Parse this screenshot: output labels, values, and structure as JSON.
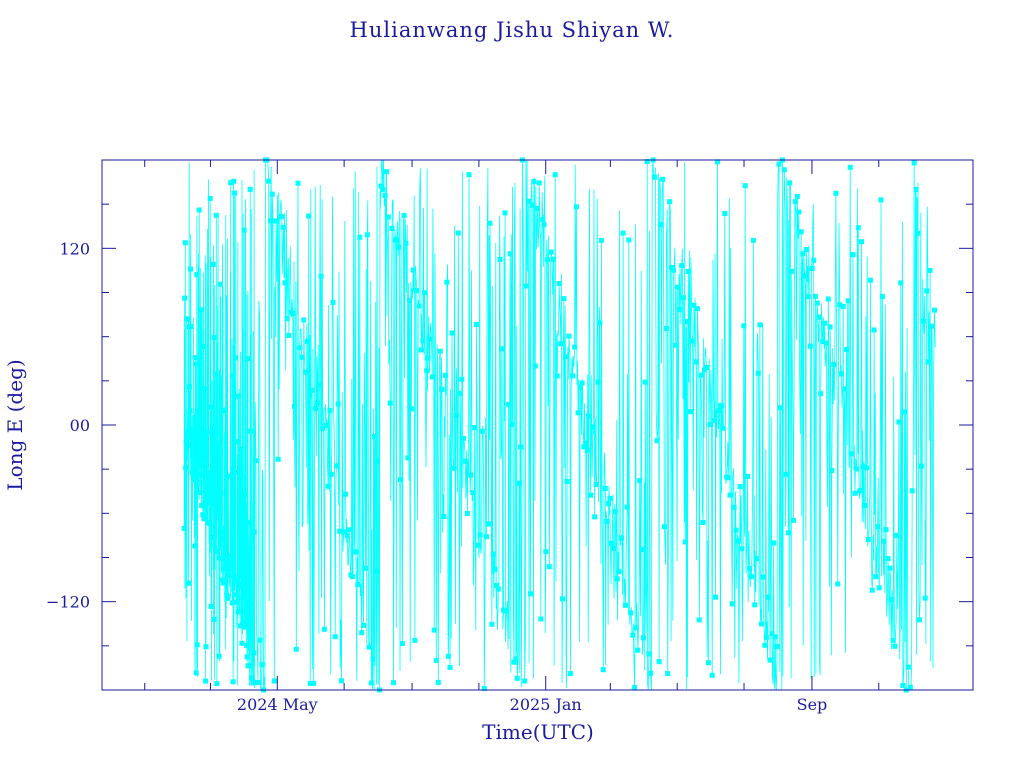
{
  "chart_data": {
    "type": "line",
    "title": "Hulianwang Jishu Shiyan W.",
    "xlabel": "Time(UTC)",
    "ylabel": "Long E (deg)",
    "ylim": [
      -180,
      180
    ],
    "xlim": [
      "2023-11-23",
      "2026-01-26"
    ],
    "y_ticks": [
      {
        "value": 120,
        "label": "120"
      },
      {
        "value": 0,
        "label": "00"
      },
      {
        "value": -120,
        "label": "−120"
      }
    ],
    "x_ticks": [
      {
        "date": "2024-05-01",
        "label": "2024 May"
      },
      {
        "date": "2025-01-01",
        "label": "2025 Jan"
      },
      {
        "date": "2025-09-01",
        "label": "Sep"
      }
    ],
    "grid": false,
    "line_color": "#00ffff",
    "axis_color": "#1a1a9e",
    "series": [
      {
        "data_start": "2024-02-06",
        "data_end": "2025-12-23",
        "drift_minima": [
          {
            "date": "2024-04-20",
            "long": -180
          },
          {
            "date": "2024-08-03",
            "long": -180
          },
          {
            "date": "2024-12-10",
            "long": -180
          },
          {
            "date": "2025-04-08",
            "long": -180
          },
          {
            "date": "2025-08-05",
            "long": -180
          },
          {
            "date": "2025-12-01",
            "long": -180
          }
        ],
        "wrap_maxima": [
          {
            "date": "2024-03-10",
            "long": 180
          },
          {
            "date": "2024-06-01",
            "long": 180
          },
          {
            "date": "2024-09-13",
            "long": 180
          },
          {
            "date": "2024-11-20",
            "long": 180
          },
          {
            "date": "2025-02-22",
            "long": 180
          },
          {
            "date": "2025-06-12",
            "long": 180
          },
          {
            "date": "2025-09-18",
            "long": 180
          }
        ]
      }
    ]
  }
}
